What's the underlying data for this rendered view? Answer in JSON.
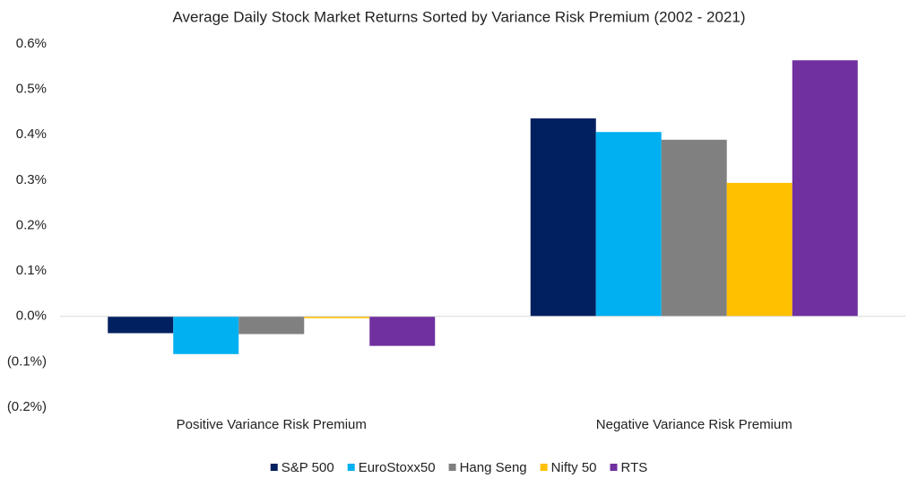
{
  "chart_data": {
    "type": "bar",
    "title": "Average Daily Stock Market Returns Sorted by Variance Risk Premium (2002 - 2021)",
    "categories": [
      "Positive Variance Risk Premium",
      "Negative Variance Risk Premium"
    ],
    "series": [
      {
        "name": "S&P 500",
        "color": "#002060",
        "values": [
          -0.037,
          0.436
        ]
      },
      {
        "name": "EuroStoxx50",
        "color": "#00b0f0",
        "values": [
          -0.083,
          0.406
        ]
      },
      {
        "name": "Hang Seng",
        "color": "#808080",
        "values": [
          -0.039,
          0.389
        ]
      },
      {
        "name": "Nifty 50",
        "color": "#ffc000",
        "values": [
          -0.004,
          0.294
        ]
      },
      {
        "name": "RTS",
        "color": "#7030a0",
        "values": [
          -0.065,
          0.564
        ]
      }
    ],
    "ylim": [
      -0.2,
      0.6
    ],
    "yticks": [
      {
        "value": 0.6,
        "label": "0.6%"
      },
      {
        "value": 0.5,
        "label": "0.5%"
      },
      {
        "value": 0.4,
        "label": "0.4%"
      },
      {
        "value": 0.3,
        "label": "0.3%"
      },
      {
        "value": 0.2,
        "label": "0.2%"
      },
      {
        "value": 0.1,
        "label": "0.1%"
      },
      {
        "value": 0.0,
        "label": "0.0%"
      },
      {
        "value": -0.1,
        "label": "(0.1%)"
      },
      {
        "value": -0.2,
        "label": "(0.2%)"
      }
    ],
    "grid": false,
    "legend": "bottom"
  }
}
